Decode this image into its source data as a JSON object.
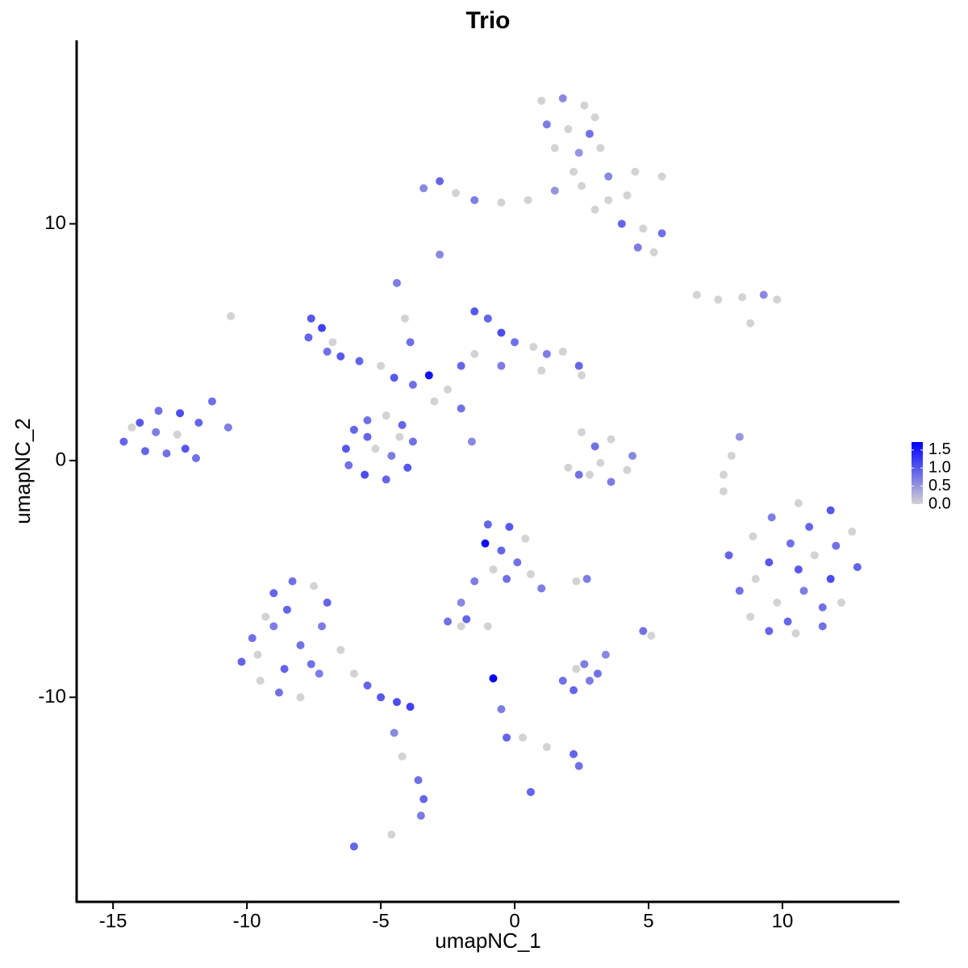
{
  "chart_data": {
    "type": "scatter",
    "title": "Trio",
    "x_label": "umapNC_1",
    "y_label": "umapNC_2",
    "xlim": [
      -16.36,
      14.37
    ],
    "ylim": [
      -18.64,
      17.75
    ],
    "xticks": [
      -15,
      -10,
      -5,
      0,
      5,
      10
    ],
    "yticks": [
      -10,
      0,
      10
    ],
    "grid": false,
    "legend_position": "right",
    "low_color": "#d3d3d3",
    "high_color": "#0000ff",
    "colorlim": [
      0,
      1.72
    ],
    "colorticks": [
      {
        "value": 0,
        "label": "0.0"
      },
      0.5,
      {
        "value": 1,
        "label": "1.0"
      },
      1.5
    ],
    "x": [
      1.0,
      1.8,
      2.6,
      3.0,
      1.2,
      2.0,
      2.8,
      1.5,
      2.4,
      3.2,
      -3.4,
      -2.8,
      -2.2,
      -1.5,
      -0.5,
      0.5,
      1.5,
      2.5,
      3.5,
      4.5,
      5.5,
      3.0,
      4.0,
      4.8,
      5.5,
      4.6,
      5.2,
      3.5,
      2.2,
      4.2,
      -2.8,
      6.8,
      7.6,
      8.5,
      9.3,
      9.8,
      8.8,
      -7.6,
      -7.2,
      -7.7,
      -6.8,
      -6.5,
      -7.0,
      -5.8,
      -5.0,
      -4.5,
      -3.8,
      -4.4,
      -4.1,
      -3.9,
      -1.5,
      -1.0,
      -0.5,
      0.0,
      0.7,
      1.2,
      1.8,
      2.4,
      2.5,
      1.0,
      -0.5,
      -1.5,
      -2.0,
      -2.5,
      -3.2,
      -2.0,
      -1.6,
      -3.0,
      -6.3,
      -6.0,
      -5.5,
      -4.8,
      -4.2,
      -3.8,
      -4.0,
      -4.8,
      -5.6,
      -6.2,
      -5.2,
      -4.6,
      -5.5,
      -4.3,
      -14.6,
      -14.0,
      -13.3,
      -12.5,
      -11.8,
      -11.3,
      -10.7,
      -13.8,
      -13.0,
      -12.3,
      -13.4,
      -12.6,
      -11.9,
      -14.3,
      -10.6,
      2.5,
      3.0,
      3.6,
      2.0,
      2.8,
      3.6,
      4.2,
      4.4,
      2.4,
      3.2,
      8.4,
      8.1,
      7.8,
      7.8,
      8.0,
      8.4,
      8.8,
      9.5,
      10.5,
      11.5,
      12.2,
      12.8,
      12.6,
      11.8,
      10.6,
      9.6,
      8.9,
      9.5,
      10.3,
      11.2,
      11.8,
      10.8,
      9.8,
      10.2,
      11.0,
      12.0,
      9.0,
      10.6,
      11.5,
      -1.0,
      -0.2,
      0.4,
      -1.1,
      -0.5,
      0.1,
      -0.8,
      -0.3,
      0.6,
      1.0,
      -1.5,
      -2.0,
      -2.5,
      -2.0,
      -1.8,
      -1.0,
      2.7,
      2.3,
      -10.2,
      -9.8,
      -9.3,
      -9.0,
      -8.3,
      -7.5,
      -7.0,
      -7.2,
      -6.5,
      -8.0,
      -8.6,
      -9.5,
      -8.8,
      -8.0,
      -7.3,
      -6.0,
      -5.5,
      -5.0,
      -4.4,
      -3.9,
      -9.0,
      -8.5,
      -9.6,
      -7.6,
      -4.5,
      -4.2,
      -3.6,
      -3.4,
      -3.5,
      -6.0,
      -4.6,
      1.8,
      2.3,
      2.8,
      3.1,
      2.2,
      2.6,
      3.4,
      -0.8,
      -0.5,
      -0.3,
      0.3,
      1.2,
      2.2,
      2.4,
      0.6,
      4.8,
      5.1
    ],
    "y": [
      15.2,
      15.3,
      15.0,
      14.5,
      14.2,
      14.0,
      13.8,
      13.2,
      13.0,
      13.2,
      11.5,
      11.8,
      11.3,
      11.0,
      10.9,
      11.0,
      11.4,
      11.6,
      12.0,
      12.2,
      12.0,
      10.6,
      10.0,
      9.8,
      9.6,
      9.0,
      8.8,
      11.0,
      12.2,
      11.2,
      8.7,
      7.0,
      6.8,
      6.9,
      7.0,
      6.8,
      5.8,
      6.0,
      5.6,
      5.2,
      5.0,
      4.4,
      4.6,
      4.2,
      4.0,
      3.5,
      3.2,
      7.5,
      6.0,
      5.0,
      6.3,
      6.0,
      5.4,
      5.0,
      4.8,
      4.5,
      4.6,
      4.0,
      3.6,
      3.8,
      4.0,
      4.5,
      4.0,
      3.0,
      3.6,
      2.2,
      0.8,
      2.5,
      0.5,
      1.3,
      1.7,
      1.9,
      1.5,
      0.8,
      -0.3,
      -0.8,
      -0.6,
      -0.2,
      0.5,
      0.2,
      1.0,
      1.0,
      0.8,
      1.6,
      2.1,
      2.0,
      1.6,
      2.5,
      1.4,
      0.4,
      0.3,
      0.5,
      1.2,
      1.1,
      0.1,
      1.4,
      6.1,
      1.2,
      0.6,
      0.9,
      -0.3,
      -0.6,
      -0.9,
      -0.4,
      0.2,
      -0.6,
      -0.1,
      1.0,
      0.2,
      -0.6,
      -1.3,
      -4.0,
      -5.5,
      -6.6,
      -7.2,
      -7.3,
      -7.0,
      -6.0,
      -4.5,
      -3.0,
      -2.1,
      -1.8,
      -2.4,
      -3.2,
      -4.3,
      -3.5,
      -4.0,
      -5.0,
      -5.5,
      -6.0,
      -6.8,
      -2.8,
      -3.6,
      -5.0,
      -4.6,
      -6.2,
      -2.7,
      -2.8,
      -3.3,
      -3.5,
      -3.8,
      -4.3,
      -4.6,
      -5.0,
      -4.8,
      -5.4,
      -5.1,
      -6.0,
      -6.8,
      -7.0,
      -6.7,
      -7.0,
      -5.0,
      -5.1,
      -8.5,
      -7.5,
      -6.6,
      -5.6,
      -5.1,
      -5.3,
      -6.0,
      -7.0,
      -8.0,
      -7.8,
      -8.8,
      -9.3,
      -9.8,
      -10.0,
      -9.0,
      -9.0,
      -9.5,
      -10.0,
      -10.2,
      -10.4,
      -7.0,
      -6.3,
      -8.2,
      -8.6,
      -11.5,
      -12.5,
      -13.5,
      -14.3,
      -15.0,
      -16.3,
      -15.8,
      -9.3,
      -8.8,
      -9.3,
      -9.0,
      -9.7,
      -8.6,
      -8.2,
      -9.2,
      -10.5,
      -11.7,
      -11.7,
      -12.1,
      -12.4,
      -12.9,
      -14.0,
      -7.2,
      -7.4
    ],
    "values": [
      0,
      0.6,
      0,
      0,
      0.7,
      0,
      0.8,
      0,
      0.5,
      0,
      0.6,
      0.9,
      0,
      0.7,
      0,
      0,
      0.5,
      0,
      0.6,
      0,
      0,
      0,
      0.9,
      0,
      0.8,
      0.7,
      0,
      0,
      0,
      0,
      0.6,
      0,
      0,
      0,
      0.6,
      0,
      0,
      1.0,
      1.2,
      0.9,
      0,
      1.0,
      0.8,
      0.9,
      0,
      1.0,
      0.8,
      0.7,
      0,
      0.8,
      1.0,
      0.9,
      1.1,
      0.8,
      0,
      0.7,
      0,
      0.9,
      0,
      0,
      0.7,
      0,
      0.9,
      0,
      1.6,
      0.8,
      0.6,
      0,
      1.0,
      0.9,
      0.8,
      0,
      0.9,
      0.8,
      1.0,
      0.9,
      1.1,
      0.8,
      0,
      0.7,
      0.9,
      0,
      0.9,
      1.0,
      0.8,
      1.1,
      0.9,
      0.8,
      0.7,
      0.9,
      0.8,
      1.0,
      0.7,
      0,
      0.8,
      0,
      0,
      0,
      0.8,
      0,
      0,
      0,
      0.7,
      0,
      0.6,
      0.8,
      0,
      0.5,
      0,
      0,
      0,
      0.9,
      0.8,
      0,
      0.9,
      0,
      0.8,
      0,
      0.9,
      0,
      1.0,
      0,
      0.7,
      0,
      1.0,
      0.8,
      0,
      1.1,
      0.7,
      0,
      0.9,
      0.9,
      0.8,
      0,
      1.0,
      0.8,
      0.9,
      1.0,
      0,
      1.6,
      0.9,
      0.8,
      0,
      0.8,
      0,
      0.7,
      0.7,
      0.6,
      0.8,
      0,
      0.9,
      0,
      0.7,
      0,
      0.9,
      0.8,
      0,
      0.9,
      0.8,
      0,
      0.9,
      0.7,
      0,
      0.8,
      0.9,
      0,
      0.8,
      0,
      0.7,
      0,
      0.9,
      1.0,
      1.1,
      1.2,
      0.7,
      0.9,
      0,
      0.8,
      0.6,
      0,
      0.8,
      0.9,
      0.7,
      0.9,
      0,
      0.8,
      0,
      0.7,
      0.8,
      0.9,
      0.7,
      0.6,
      1.7,
      0.7,
      0.9,
      0,
      0,
      0.9,
      0.8,
      0.9,
      0.8,
      0
    ]
  }
}
